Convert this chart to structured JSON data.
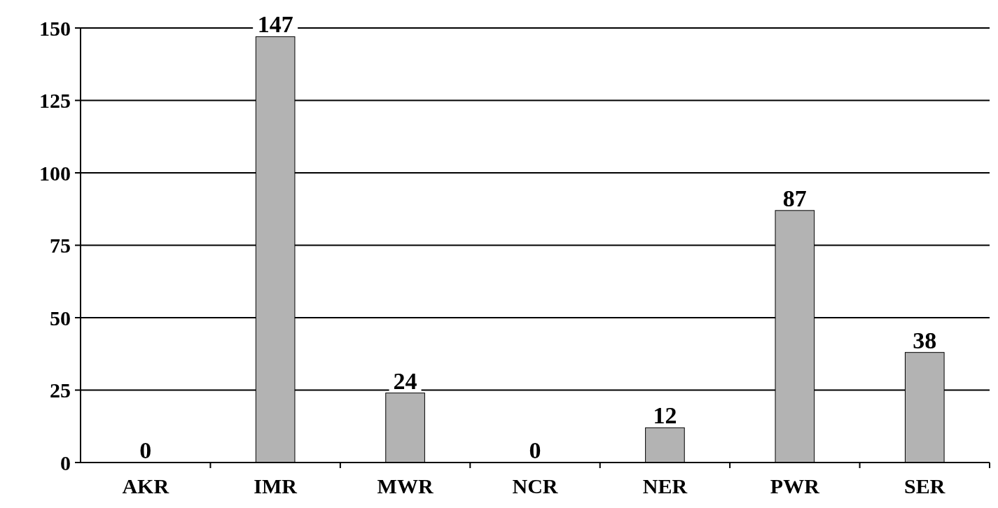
{
  "chart_data": {
    "type": "bar",
    "categories": [
      "AKR",
      "IMR",
      "MWR",
      "NCR",
      "NER",
      "PWR",
      "SER"
    ],
    "values": [
      0,
      147,
      24,
      0,
      12,
      87,
      38
    ],
    "color": "#b3b3b3",
    "ylim": [
      0,
      150
    ],
    "yticks": [
      0,
      25,
      50,
      75,
      100,
      125,
      150
    ],
    "grid": "y",
    "data_labels": true
  }
}
